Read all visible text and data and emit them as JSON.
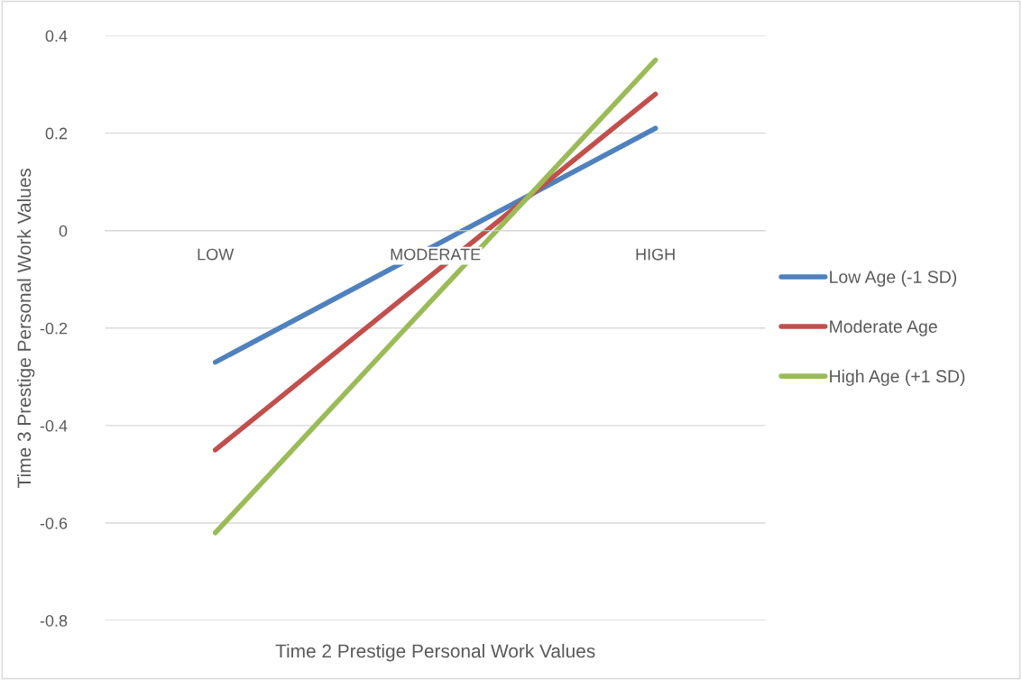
{
  "chart_data": {
    "type": "line",
    "xlabel": "Time 2 Prestige Personal Work Values",
    "ylabel": "Time 3 Prestige Personal Work Values",
    "categories": [
      "LOW",
      "MODERATE",
      "HIGH"
    ],
    "series": [
      {
        "name": "Low Age (-1 SD)",
        "color": "#4f81bd",
        "values": [
          -0.27,
          -0.03,
          0.21
        ]
      },
      {
        "name": "Moderate Age",
        "color": "#c0504d",
        "values": [
          -0.45,
          -0.085,
          0.28
        ]
      },
      {
        "name": "High Age (+1 SD)",
        "color": "#9bbb59",
        "values": [
          -0.62,
          -0.135,
          0.35
        ]
      }
    ],
    "ylim": [
      -0.8,
      0.4
    ],
    "yticks": [
      -0.8,
      -0.6,
      -0.4,
      -0.2,
      0,
      0.2,
      0.4
    ],
    "grid": "y",
    "legend": "right",
    "marker": "none",
    "line_style": "solid"
  }
}
